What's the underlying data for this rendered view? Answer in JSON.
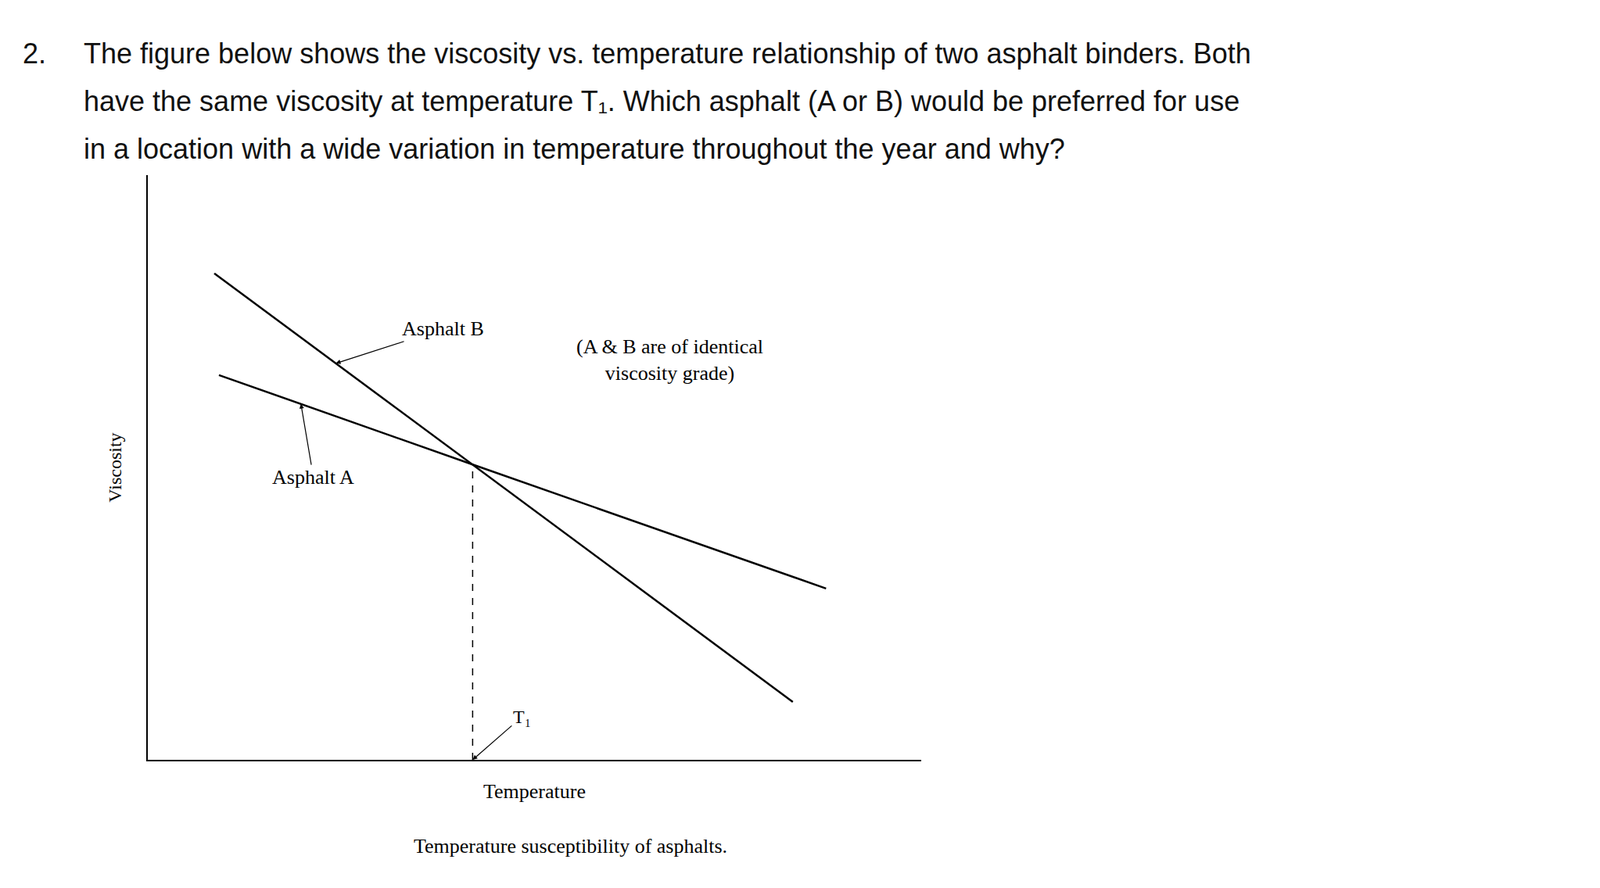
{
  "question": {
    "number": "2.",
    "lines": [
      "The figure below shows the viscosity vs. temperature relationship of two asphalt binders.  Both",
      "have the same viscosity at temperature T₁.  Which asphalt (A or B) would be preferred for use",
      "in a location with a wide variation in temperature throughout the year and why?"
    ]
  },
  "chart_data": {
    "type": "line",
    "caption": "Temperature susceptibility of asphalts.",
    "x_label": "Temperature",
    "y_label": "Viscosity",
    "xlim": [
      0,
      100
    ],
    "ylim": [
      0,
      100
    ],
    "tick_labels": false,
    "grid": false,
    "series": [
      {
        "name": "Asphalt B",
        "color": "#000000",
        "line_style": "solid",
        "x": [
          8.6,
          42,
          83.4
        ],
        "values": [
          83.2,
          50.5,
          9.9
        ]
      },
      {
        "name": "Asphalt A",
        "color": "#000000",
        "line_style": "solid",
        "x": [
          9.2,
          42,
          87.7
        ],
        "values": [
          65.8,
          50.5,
          29.3
        ]
      }
    ],
    "marker_line": {
      "x": 42,
      "y": 50.5,
      "label": "T₁",
      "line_style": "dash"
    },
    "note": [
      "(A & B are of identical",
      "viscosity grade)"
    ]
  }
}
